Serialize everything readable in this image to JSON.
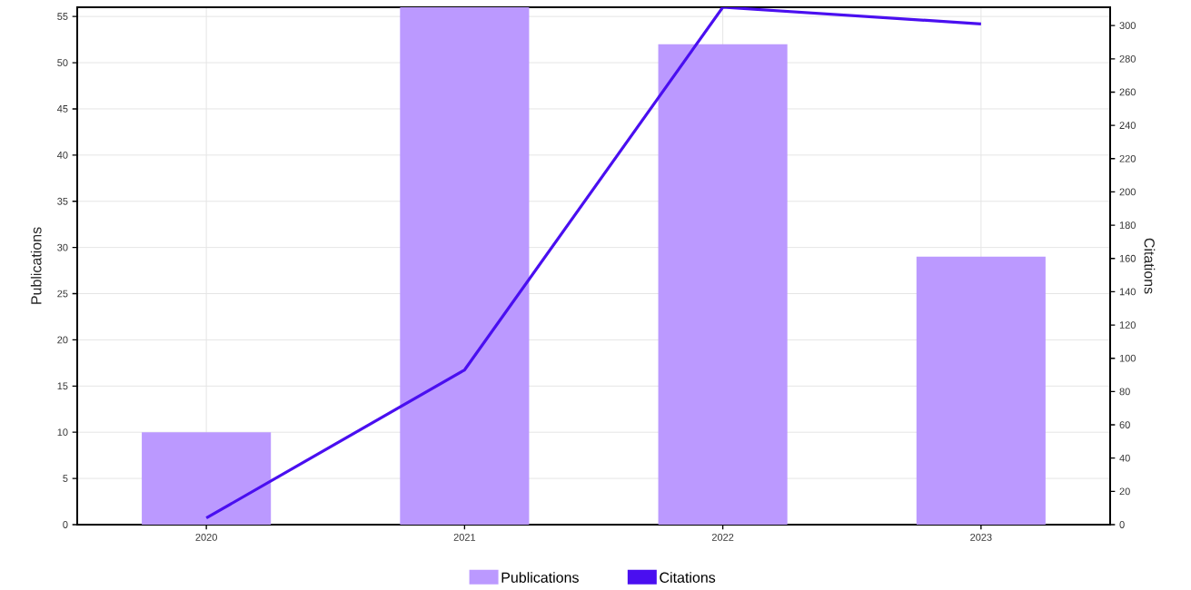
{
  "chart_data": {
    "type": "bar",
    "categories": [
      "2020",
      "2021",
      "2022",
      "2023"
    ],
    "ylabel": "Publications",
    "y2label": "Citations",
    "series": [
      {
        "name": "Publications",
        "color": "#bb99ff",
        "values": [
          10,
          56,
          52,
          29
        ]
      },
      {
        "name": "Citations",
        "type": "line",
        "axis": "y2",
        "color": "#4a0ff0",
        "values": [
          4,
          93,
          311,
          301
        ]
      }
    ],
    "ylim": [
      0,
      56
    ],
    "yticks": [
      0,
      5,
      10,
      15,
      20,
      25,
      30,
      35,
      40,
      45,
      50,
      55
    ],
    "y2lim": [
      0,
      311
    ],
    "y2ticks": [
      0,
      20,
      40,
      60,
      80,
      100,
      120,
      140,
      160,
      180,
      200,
      220,
      240,
      260,
      280,
      300
    ],
    "grid": true,
    "legend": "bottom",
    "marker": "none"
  }
}
